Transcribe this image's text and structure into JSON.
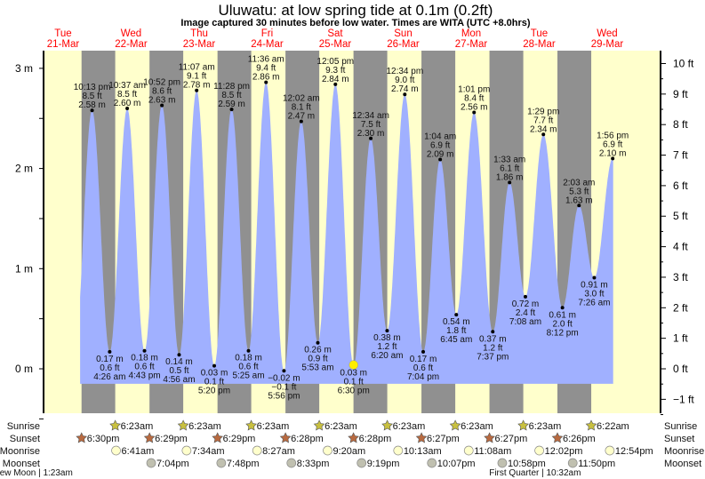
{
  "chart_data": {
    "type": "area",
    "title": "Uluwatu: at low  spring tide at 0.1m (0.2ft)",
    "subtitle": "Image captured 30 minutes before low water. Times are WITA (UTC +8.0hrs)",
    "days": [
      {
        "dow": "Tue",
        "date": "21-Mar"
      },
      {
        "dow": "Wed",
        "date": "22-Mar"
      },
      {
        "dow": "Thu",
        "date": "23-Mar"
      },
      {
        "dow": "Fri",
        "date": "24-Mar"
      },
      {
        "dow": "Sat",
        "date": "25-Mar"
      },
      {
        "dow": "Sun",
        "date": "26-Mar"
      },
      {
        "dow": "Mon",
        "date": "27-Mar"
      },
      {
        "dow": "Tue",
        "date": "28-Mar"
      },
      {
        "dow": "Wed",
        "date": "29-Mar"
      }
    ],
    "y_left": {
      "unit": "m",
      "ticks": [
        "3 m",
        "2 m",
        "1 m",
        "0 m"
      ],
      "tick_values": [
        3,
        2,
        1,
        0
      ],
      "range": [
        -0.45,
        3.2
      ]
    },
    "y_right": {
      "unit": "ft",
      "ticks": [
        "10 ft",
        "9 ft",
        "8 ft",
        "7 ft",
        "6 ft",
        "5 ft",
        "4 ft",
        "3 ft",
        "2 ft",
        "1 ft",
        "0 ft",
        "−1 ft"
      ],
      "tick_values": [
        10,
        9,
        8,
        7,
        6,
        5,
        4,
        3,
        2,
        1,
        0,
        -1
      ]
    },
    "fill_range_hours": [
      18,
      206.1
    ],
    "fill_floor_m": -0.15,
    "current_marker": {
      "day": 4,
      "time": "6:30 pm",
      "value": 0.03
    },
    "extremes": [
      {
        "day": 0,
        "type": "high",
        "time": "10:13 pm",
        "ft": "8.5 ft",
        "m": "2.58 m",
        "value": 2.58
      },
      {
        "day": 1,
        "type": "low",
        "time": "4:26 am",
        "ft": "0.6 ft",
        "m": "0.17 m",
        "value": 0.17
      },
      {
        "day": 1,
        "type": "high",
        "time": "10:37 am",
        "ft": "8.5 ft",
        "m": "2.60 m",
        "value": 2.6
      },
      {
        "day": 1,
        "type": "low",
        "time": "4:43 pm",
        "ft": "0.6 ft",
        "m": "0.18 m",
        "value": 0.18
      },
      {
        "day": 1,
        "type": "high",
        "time": "10:52 pm",
        "ft": "8.6 ft",
        "m": "2.63 m",
        "value": 2.63
      },
      {
        "day": 2,
        "type": "low",
        "time": "4:56 am",
        "ft": "0.5 ft",
        "m": "0.14 m",
        "value": 0.14
      },
      {
        "day": 2,
        "type": "high",
        "time": "11:07 am",
        "ft": "9.1 ft",
        "m": "2.78 m",
        "value": 2.78
      },
      {
        "day": 2,
        "type": "low",
        "time": "5:20 pm",
        "ft": "0.1 ft",
        "m": "0.03 m",
        "value": 0.03
      },
      {
        "day": 2,
        "type": "high",
        "time": "11:28 pm",
        "ft": "8.5 ft",
        "m": "2.59 m",
        "value": 2.59
      },
      {
        "day": 3,
        "type": "low",
        "time": "5:25 am",
        "ft": "0.6 ft",
        "m": "0.18 m",
        "value": 0.18
      },
      {
        "day": 3,
        "type": "high",
        "time": "11:36 am",
        "ft": "9.4 ft",
        "m": "2.86 m",
        "value": 2.86
      },
      {
        "day": 3,
        "type": "low",
        "time": "5:56 pm",
        "ft": "−0.1 ft",
        "m": "−0.02 m",
        "value": -0.02
      },
      {
        "day": 4,
        "type": "high",
        "time": "12:02 am",
        "ft": "8.1 ft",
        "m": "2.47 m",
        "value": 2.47
      },
      {
        "day": 4,
        "type": "low",
        "time": "5:53 am",
        "ft": "0.9 ft",
        "m": "0.26 m",
        "value": 0.26
      },
      {
        "day": 4,
        "type": "high",
        "time": "12:05 pm",
        "ft": "9.3 ft",
        "m": "2.84 m",
        "value": 2.84
      },
      {
        "day": 4,
        "type": "low",
        "time": "6:30 pm",
        "ft": "0.1 ft",
        "m": "0.03 m",
        "value": 0.03
      },
      {
        "day": 5,
        "type": "high",
        "time": "12:34 am",
        "ft": "7.5 ft",
        "m": "2.30 m",
        "value": 2.3
      },
      {
        "day": 5,
        "type": "low",
        "time": "6:20 am",
        "ft": "1.2 ft",
        "m": "0.38 m",
        "value": 0.38
      },
      {
        "day": 5,
        "type": "high",
        "time": "12:34 pm",
        "ft": "9.0 ft",
        "m": "2.74 m",
        "value": 2.74
      },
      {
        "day": 5,
        "type": "low",
        "time": "7:04 pm",
        "ft": "0.6 ft",
        "m": "0.17 m",
        "value": 0.17
      },
      {
        "day": 6,
        "type": "high",
        "time": "1:04 am",
        "ft": "6.9 ft",
        "m": "2.09 m",
        "value": 2.09
      },
      {
        "day": 6,
        "type": "low",
        "time": "6:45 am",
        "ft": "1.8 ft",
        "m": "0.54 m",
        "value": 0.54
      },
      {
        "day": 6,
        "type": "high",
        "time": "1:01 pm",
        "ft": "8.4 ft",
        "m": "2.56 m",
        "value": 2.56
      },
      {
        "day": 6,
        "type": "low",
        "time": "7:37 pm",
        "ft": "1.2 ft",
        "m": "0.37 m",
        "value": 0.37
      },
      {
        "day": 7,
        "type": "high",
        "time": "1:33 am",
        "ft": "6.1 ft",
        "m": "1.86 m",
        "value": 1.86
      },
      {
        "day": 7,
        "type": "low",
        "time": "7:08 am",
        "ft": "2.4 ft",
        "m": "0.72 m",
        "value": 0.72
      },
      {
        "day": 7,
        "type": "high",
        "time": "1:29 pm",
        "ft": "7.7 ft",
        "m": "2.34 m",
        "value": 2.34
      },
      {
        "day": 7,
        "type": "low",
        "time": "8:12 pm",
        "ft": "2.0 ft",
        "m": "0.61 m",
        "value": 0.61
      },
      {
        "day": 8,
        "type": "high",
        "time": "2:03 am",
        "ft": "5.3 ft",
        "m": "1.63 m",
        "value": 1.63
      },
      {
        "day": 8,
        "type": "low",
        "time": "7:26 am",
        "ft": "3.0 ft",
        "m": "0.91 m",
        "value": 0.91
      },
      {
        "day": 8,
        "type": "high",
        "time": "1:56 pm",
        "ft": "6.9 ft",
        "m": "2.10 m",
        "value": 2.1
      }
    ],
    "rows": [
      {
        "label": "Sunrise",
        "kind": "sunrise",
        "events": [
          {
            "day": 1,
            "time": "6:23am"
          },
          {
            "day": 2,
            "time": "6:23am"
          },
          {
            "day": 3,
            "time": "6:23am"
          },
          {
            "day": 4,
            "time": "6:23am"
          },
          {
            "day": 5,
            "time": "6:23am"
          },
          {
            "day": 6,
            "time": "6:23am"
          },
          {
            "day": 7,
            "time": "6:23am"
          },
          {
            "day": 8,
            "time": "6:22am"
          }
        ]
      },
      {
        "label": "Sunset",
        "kind": "sunset",
        "events": [
          {
            "day": 0,
            "time": "6:30pm"
          },
          {
            "day": 1,
            "time": "6:29pm"
          },
          {
            "day": 2,
            "time": "6:29pm"
          },
          {
            "day": 3,
            "time": "6:28pm"
          },
          {
            "day": 4,
            "time": "6:28pm"
          },
          {
            "day": 5,
            "time": "6:27pm"
          },
          {
            "day": 6,
            "time": "6:27pm"
          },
          {
            "day": 7,
            "time": "6:26pm"
          }
        ]
      },
      {
        "label": "Moonrise",
        "kind": "moonrise",
        "events": [
          {
            "day": 1,
            "time": "6:41am"
          },
          {
            "day": 2,
            "time": "7:34am"
          },
          {
            "day": 3,
            "time": "8:27am"
          },
          {
            "day": 4,
            "time": "9:20am"
          },
          {
            "day": 5,
            "time": "10:13am"
          },
          {
            "day": 6,
            "time": "11:08am"
          },
          {
            "day": 7,
            "time": "12:02pm"
          },
          {
            "day": 8,
            "time": "12:54pm"
          }
        ]
      },
      {
        "label": "Moonset",
        "kind": "moonset",
        "events": [
          {
            "day": 1,
            "time": "7:04pm"
          },
          {
            "day": 2,
            "time": "7:48pm"
          },
          {
            "day": 3,
            "time": "8:33pm"
          },
          {
            "day": 4,
            "time": "9:19pm"
          },
          {
            "day": 5,
            "time": "10:07pm"
          },
          {
            "day": 6,
            "time": "10:58pm"
          },
          {
            "day": 7,
            "time": "11:50pm"
          }
        ]
      }
    ],
    "moon_phases": [
      {
        "text": "New Moon | 1:23am",
        "day": 0,
        "time": "1:23am"
      },
      {
        "text": "First Quarter | 10:32am",
        "day": 7,
        "time": "10:32am"
      }
    ],
    "colors": {
      "water": "#a0b0ff",
      "day": "#ffffcc",
      "night": "#909090",
      "sunrise": "#c8c040",
      "sunset": "#b86a40",
      "moonrise": "#ffffcc",
      "moonset": "#c0c0b0",
      "current": "#ffee00",
      "daylabel": "#ff0000"
    }
  }
}
